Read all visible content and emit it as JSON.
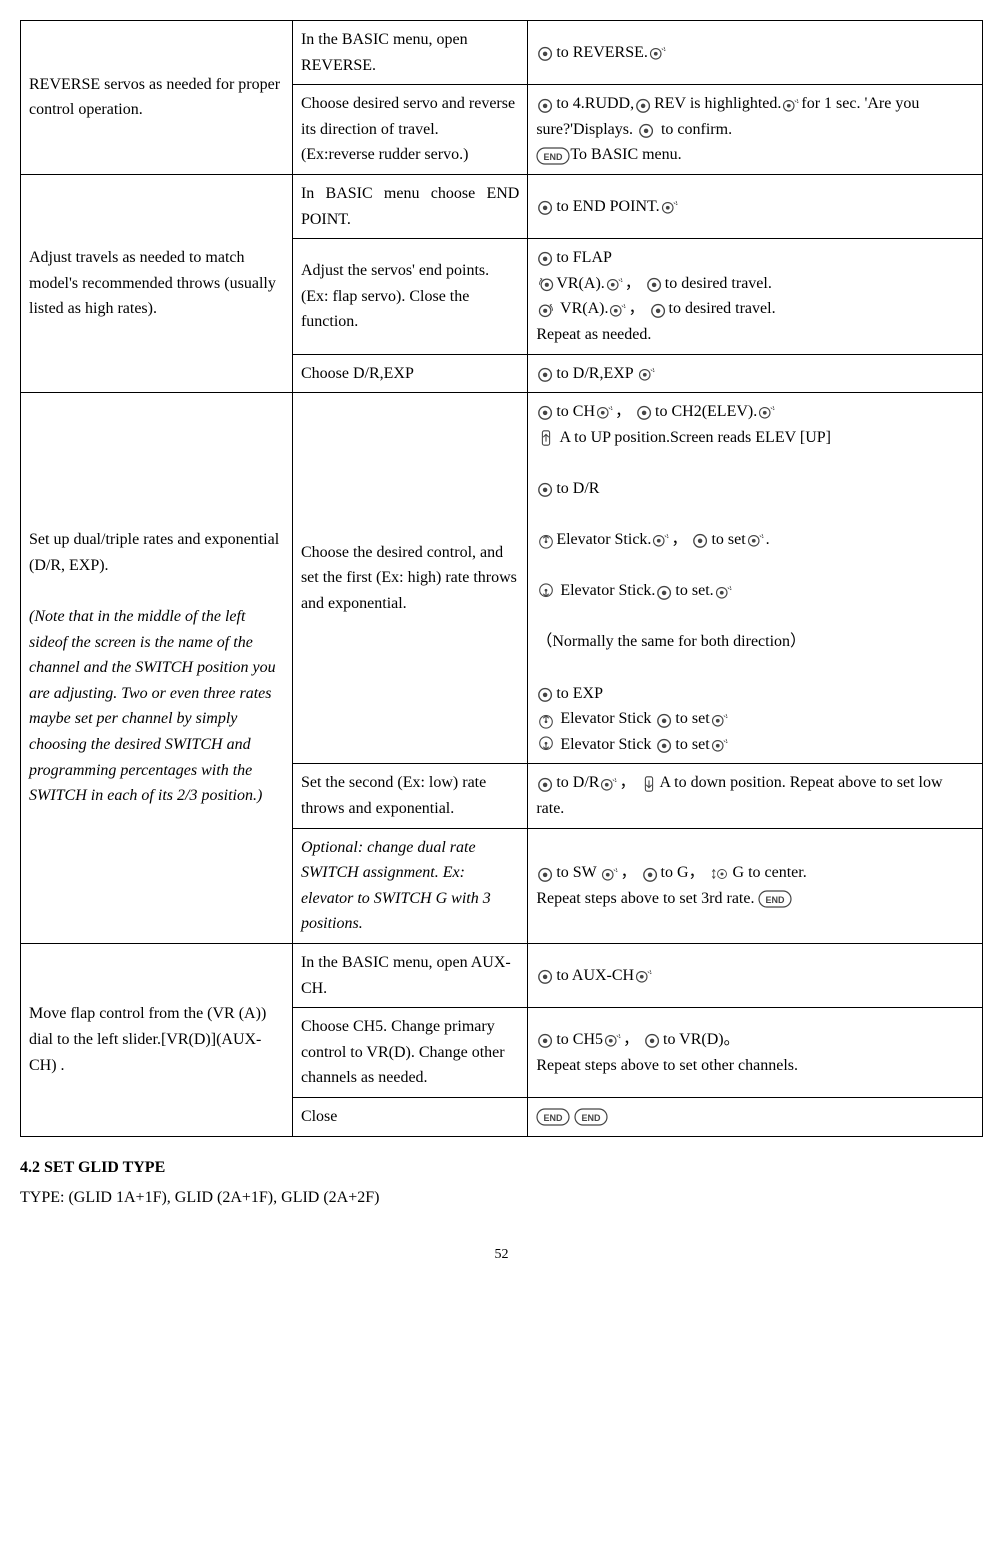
{
  "icons": {
    "dial": "◎",
    "dial_click": "◎✧",
    "end": "END",
    "switch_up": "⇡",
    "switch_down": "⇣",
    "stick_up": "⊕↑",
    "stick_down": "⊕↓",
    "switch_center": "⇅◎"
  },
  "rows": [
    {
      "c1": "REVERSE servos as needed for proper control operation.",
      "c1_rowspan": 2,
      "subs": [
        {
          "c2": "In the BASIC menu, open REVERSE.",
          "c3_tpl": "r1a"
        },
        {
          "c2": "Choose desired servo and reverse its direction of travel.\n(Ex:reverse rudder servo.)",
          "c3_tpl": "r1b"
        }
      ]
    },
    {
      "c1": "Adjust travels as needed to match model's recommended throws (usually listed as high rates).",
      "c1_rowspan": 3,
      "subs": [
        {
          "c2": "In BASIC menu choose END POINT.",
          "c2_justify": true,
          "c3_tpl": "r2a"
        },
        {
          "c2": "Adjust the servos' end points. (Ex: flap servo). Close the function.",
          "c3_tpl": "r2b"
        },
        {
          "c2": "Choose D/R,EXP",
          "c3_tpl": "r2c"
        }
      ]
    },
    {
      "c1": "Set up dual/triple rates and exponential (D/R, EXP).",
      "c1_note": "(Note that in the middle of the left sideof the screen is the name of the channel and the SWITCH position you are adjusting. Two or even three rates maybe set per channel by simply choosing the desired SWITCH and programming percentages with the SWITCH in each of its 2/3 position.)",
      "c1_rowspan": 3,
      "subs": [
        {
          "c2": "Choose the desired control, and set the first (Ex: high) rate throws and exponential.",
          "c3_tpl": "r3a"
        },
        {
          "c2": "Set the second (Ex: low) rate throws and exponential.",
          "c3_tpl": "r3b"
        },
        {
          "c2": "Optional: change dual rate SWITCH assignment. Ex: elevator to SWITCH G with 3 positions.",
          "c2_italic": true,
          "c3_tpl": "r3c"
        }
      ]
    },
    {
      "c1": "Move flap control from the (VR (A)) dial to the left slider.[VR(D)](AUX-CH) .",
      "c1_rowspan": 3,
      "subs": [
        {
          "c2": "In the BASIC menu, open AUX-CH.",
          "c3_tpl": "r4a"
        },
        {
          "c2": "Choose CH5. Change primary control to VR(D). Change other channels as needed.",
          "c3_tpl": "r4b"
        },
        {
          "c2": "Close",
          "c3_tpl": "r4c"
        }
      ]
    }
  ],
  "strings": {
    "to_reverse": "to REVERSE.",
    "to_4rudd": "to 4.RUDD,",
    "rev_highlighted": "REV is highlighted.",
    "for1sec": "for 1 sec. 'Are you sure?'Displays.",
    "to_confirm": "to confirm.",
    "to_basic_menu": "To BASIC menu.",
    "to_endpoint": "to END POINT.",
    "to_flap": "to FLAP",
    "vra": "VR(A).",
    "to_desired_travel": "to desired travel.",
    "repeat_as_needed": "Repeat as needed.",
    "to_drexp": "to D/R,EXP",
    "to_ch": "to CH",
    "to_ch2": "to CH2(ELEV).",
    "a_up": "A to UP position.Screen reads ELEV [UP]",
    "to_dr": "to D/R",
    "elev_stick": "Elevator Stick.",
    "to_set": "to set",
    "normally_same": "（Normally the same for both direction）",
    "to_exp": "to EXP",
    "elev_stick_sp": "Elevator Stick",
    "a_down": "A to down position. Repeat above to set low rate.",
    "to_sw": "to SW",
    "to_g": "to G，",
    "g_center": "G to center.",
    "repeat_3rd": "Repeat steps above to set 3rd rate.",
    "to_auxch": "to AUX-CH",
    "to_ch5": "to CH5",
    "to_vrd": "to VR(D)。",
    "repeat_other": "Repeat steps above to set other channels.",
    "comma": "，",
    "period": "."
  },
  "section_heading": "4.2 SET GLID TYPE",
  "type_line": "TYPE: (GLID 1A+1F), GLID (2A+1F), GLID (2A+2F)",
  "page_number": "52"
}
